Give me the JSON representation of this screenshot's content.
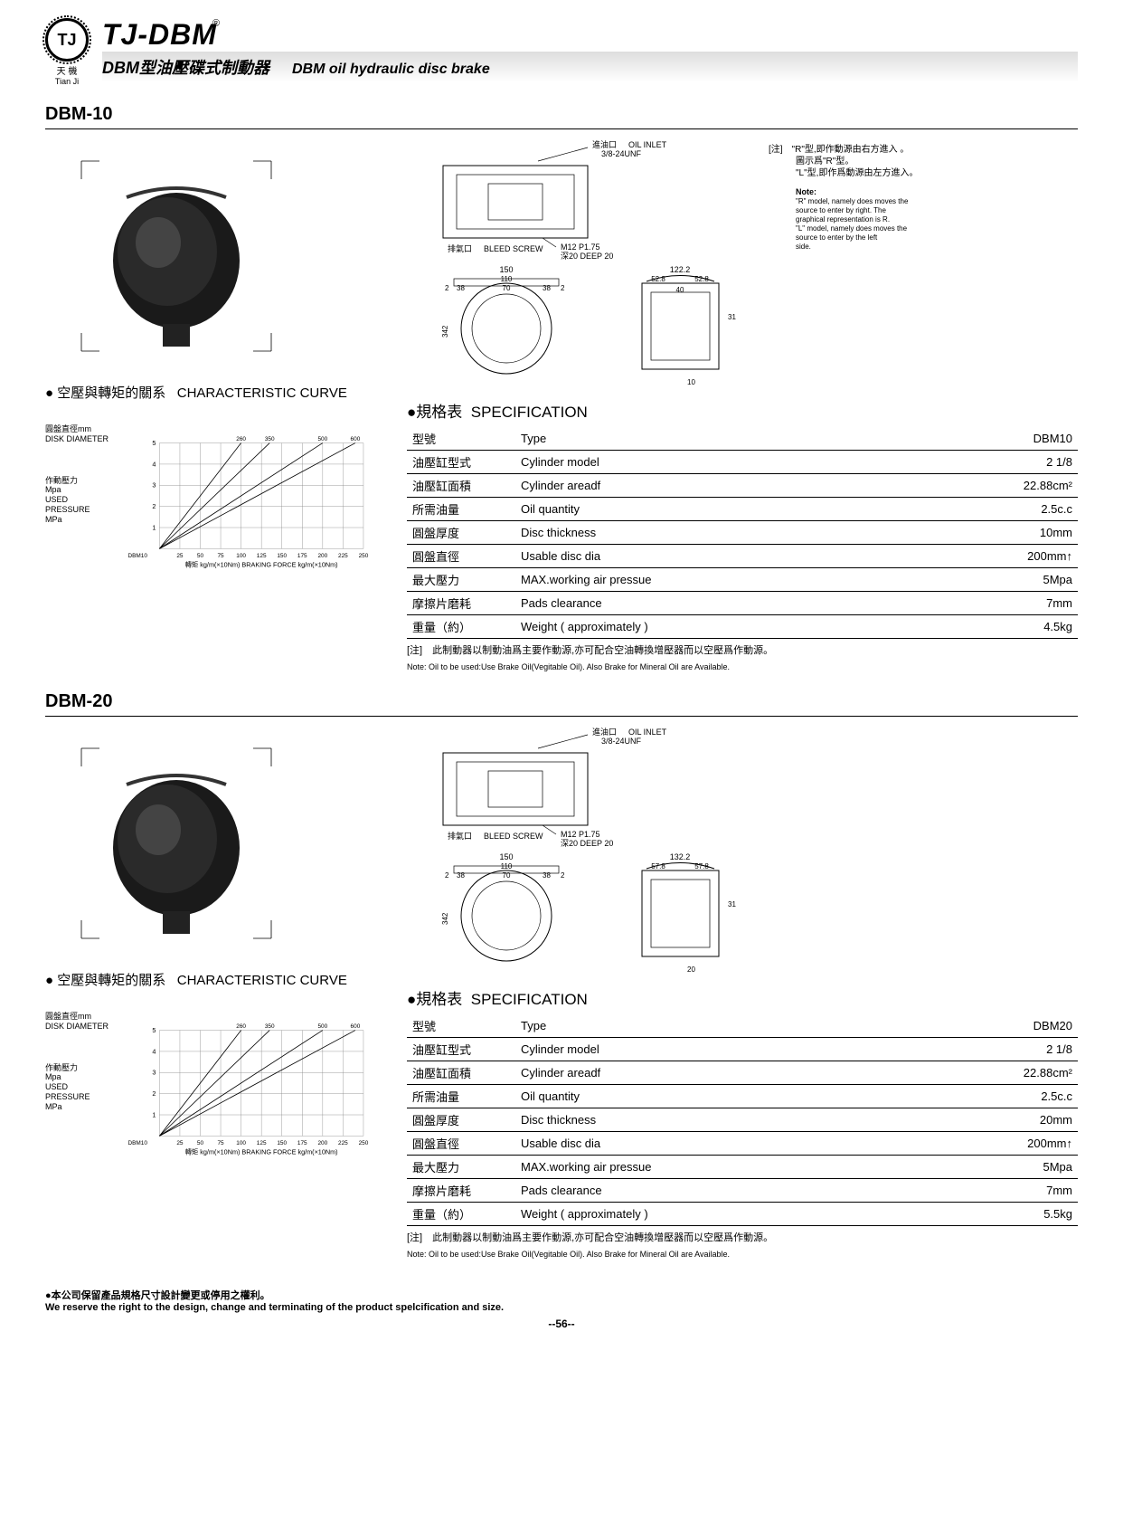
{
  "header": {
    "logo_text": "TJ",
    "logo_cn": "天 機",
    "logo_en": "Tian Ji",
    "reg": "®",
    "main_title": "TJ-DBM",
    "sub_cn": "DBM型油壓碟式制動器",
    "sub_en": "DBM oil hydraulic disc brake"
  },
  "models": [
    {
      "name": "DBM-10",
      "curve_title_cn": "● 空壓與轉矩的關系",
      "curve_title_en": "CHARACTERISTIC CURVE",
      "chart": {
        "y_label_cn1": "圓盤直徑mm",
        "y_label_en1": "DISK DIAMETER",
        "y_label_cn2": "作動壓力",
        "y_label_unit": "Mpa",
        "y_label_en2": "USED PRESSURE",
        "y_label_unit2": "MPa",
        "x_origin": "DBM10",
        "x_label_cn": "轉矩  kg/m(×10Nm)",
        "x_label_en": "BRAKING FORCE kg/m(×10Nm)",
        "y_ticks": [
          1,
          2,
          3,
          4,
          5
        ],
        "x_ticks": [
          25,
          50,
          75,
          100,
          125,
          150,
          175,
          200,
          225,
          250
        ],
        "top_labels": [
          260,
          350,
          500,
          600
        ],
        "top_positions": [
          100,
          135,
          200,
          240
        ],
        "lines": [
          {
            "points": [
              [
                0,
                0
              ],
              [
                100,
                200
              ]
            ],
            "end_x": 100
          },
          {
            "points": [
              [
                0,
                0
              ],
              [
                135,
                200
              ]
            ],
            "end_x": 135
          },
          {
            "points": [
              [
                0,
                0
              ],
              [
                200,
                200
              ]
            ],
            "end_x": 200
          },
          {
            "points": [
              [
                0,
                0
              ],
              [
                240,
                200
              ]
            ],
            "end_x": 240
          }
        ],
        "bg": "#ffffff",
        "grid": "#888888",
        "line_color": "#000000"
      },
      "diagram": {
        "oil_inlet_cn": "進油口",
        "oil_inlet_en": "OIL INLET",
        "oil_thread": "3/8-24UNF",
        "bleed_cn": "排氣口",
        "bleed_en": "BLEED SCREW",
        "bleed_thread": "M12 P1.75",
        "bleed_depth": "深20 DEEP 20",
        "dims": {
          "w150": "150",
          "w110": "110",
          "w70": "70",
          "d2": "2",
          "d38a": "38",
          "d38b": "38",
          "d2b": "2",
          "h342": "342",
          "w122": "122.2",
          "w52a": "52.8",
          "w52b": "52.8",
          "w40": "40",
          "h31": "31",
          "d10": "10"
        },
        "note_cn1": "[注]　\"R\"型,即作動源由右方進入 。",
        "note_cn2": "圖示爲\"R\"型。",
        "note_cn3": "\"L\"型,即作爲動源由左方進入。",
        "note_en_title": "Note:",
        "note_en": "\"R\" model, namely does moves the source to enter by right. The graphical representation is R. \"L\" model, namely does moves the source to enter by the left side."
      },
      "spec_title_cn": "●規格表",
      "spec_title_en": "SPECIFICATION",
      "spec": [
        {
          "cn": "型號",
          "en": "Type",
          "val": "DBM10"
        },
        {
          "cn": "油壓缸型式",
          "en": "Cylinder model",
          "val": "2 1/8"
        },
        {
          "cn": "油壓缸面積",
          "en": "Cylinder areadf",
          "val": "22.88cm²"
        },
        {
          "cn": "所需油量",
          "en": "Oil quantity",
          "val": "2.5c.c"
        },
        {
          "cn": "圓盤厚度",
          "en": "Disc thickness",
          "val": "10mm"
        },
        {
          "cn": "圓盤直徑",
          "en": "Usable disc dia",
          "val": "200mm↑"
        },
        {
          "cn": "最大壓力",
          "en": "MAX.working air pressue",
          "val": "5Mpa"
        },
        {
          "cn": "摩擦片磨耗",
          "en": "Pads clearance",
          "val": "7mm"
        },
        {
          "cn": "重量（約）",
          "en": "Weight ( approximately )",
          "val": "4.5kg"
        }
      ],
      "note_cn": "[注]　此制動器以制動油爲主要作動源,亦可配合空油轉換增壓器而以空壓爲作動源。",
      "note_en": "Note: Oil to be used:Use Brake Oil(Vegitable Oil). Also Brake for Mineral Oil are Available."
    },
    {
      "name": "DBM-20",
      "curve_title_cn": "● 空壓與轉矩的關系",
      "curve_title_en": "CHARACTERISTIC CURVE",
      "chart": {
        "y_label_cn1": "圓盤直徑mm",
        "y_label_en1": "DISK DIAMETER",
        "y_label_cn2": "作動壓力",
        "y_label_unit": "Mpa",
        "y_label_en2": "USED PRESSURE",
        "y_label_unit2": "MPa",
        "x_origin": "DBM10",
        "x_label_cn": "轉矩  kg/m(×10Nm)",
        "x_label_en": "BRAKING FORCE kg/m(×10Nm)",
        "y_ticks": [
          1,
          2,
          3,
          4,
          5
        ],
        "x_ticks": [
          25,
          50,
          75,
          100,
          125,
          150,
          175,
          200,
          225,
          250
        ],
        "top_labels": [
          260,
          350,
          500,
          600
        ],
        "top_positions": [
          100,
          135,
          200,
          240
        ],
        "bg": "#ffffff",
        "grid": "#888888",
        "line_color": "#000000"
      },
      "diagram": {
        "oil_inlet_cn": "進油口",
        "oil_inlet_en": "OIL INLET",
        "oil_thread": "3/8-24UNF",
        "bleed_cn": "排氣口",
        "bleed_en": "BLEED SCREW",
        "bleed_thread": "M12 P1.75",
        "bleed_depth": "深20 DEEP 20",
        "dims": {
          "w150": "150",
          "w110": "110",
          "w70": "70",
          "d2": "2",
          "d38a": "38",
          "d38b": "38",
          "d2b": "2",
          "h342": "342",
          "w132": "132.2",
          "w57a": "57.8",
          "w57b": "57.8",
          "h31": "31",
          "d20": "20"
        }
      },
      "spec_title_cn": "●規格表",
      "spec_title_en": "SPECIFICATION",
      "spec": [
        {
          "cn": "型號",
          "en": "Type",
          "val": "DBM20"
        },
        {
          "cn": "油壓缸型式",
          "en": "Cylinder model",
          "val": "2 1/8"
        },
        {
          "cn": "油壓缸面積",
          "en": "Cylinder areadf",
          "val": "22.88cm²"
        },
        {
          "cn": "所需油量",
          "en": "Oil quantity",
          "val": "2.5c.c"
        },
        {
          "cn": "圓盤厚度",
          "en": "Disc thickness",
          "val": "20mm"
        },
        {
          "cn": "圓盤直徑",
          "en": "Usable disc dia",
          "val": "200mm↑"
        },
        {
          "cn": "最大壓力",
          "en": "MAX.working air pressue",
          "val": "5Mpa"
        },
        {
          "cn": "摩擦片磨耗",
          "en": "Pads clearance",
          "val": "7mm"
        },
        {
          "cn": "重量（約）",
          "en": "Weight ( approximately )",
          "val": "5.5kg"
        }
      ],
      "note_cn": "[注]　此制動器以制動油爲主要作動源,亦可配合空油轉換增壓器而以空壓爲作動源。",
      "note_en": "Note: Oil to be used:Use Brake Oil(Vegitable Oil). Also Brake for Mineral Oil are Available."
    }
  ],
  "footer": {
    "cn": "●本公司保留產品規格尺寸設計變更或停用之權利。",
    "en": "We reserve the right to the design, change and terminating of the product spelcification and size.",
    "page": "--56--"
  }
}
